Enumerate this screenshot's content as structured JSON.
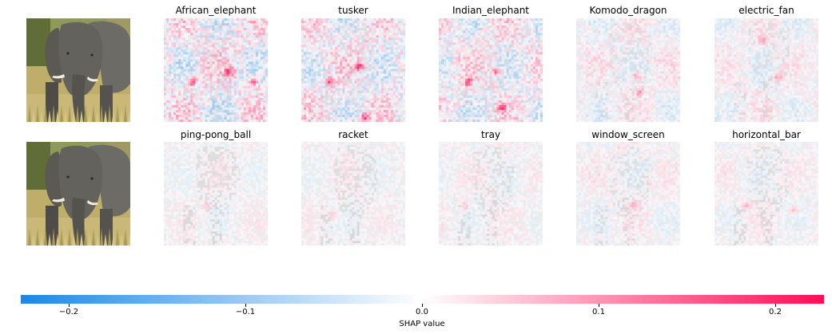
{
  "chart_data": {
    "type": "heatmap",
    "rows": [
      {
        "input_image": "elephant-photo",
        "classes": [
          "African_elephant",
          "tusker",
          "Indian_elephant",
          "Komodo_dragon",
          "electric_fan"
        ]
      },
      {
        "input_image": "elephant-photo",
        "classes": [
          "ping-pong_ball",
          "racket",
          "tray",
          "window_screen",
          "horizontal_bar"
        ]
      }
    ],
    "colorbar": {
      "label": "SHAP value",
      "vmin": -0.228,
      "vmax": 0.228,
      "ticks": [
        -0.2,
        -0.1,
        0.0,
        0.1,
        0.2
      ],
      "tick_labels": [
        "−0.2",
        "−0.1",
        "0.0",
        "0.1",
        "0.2"
      ],
      "negative_color": "#1e88e5",
      "zero_color": "#ffffff",
      "positive_color": "#ff0d57"
    }
  }
}
